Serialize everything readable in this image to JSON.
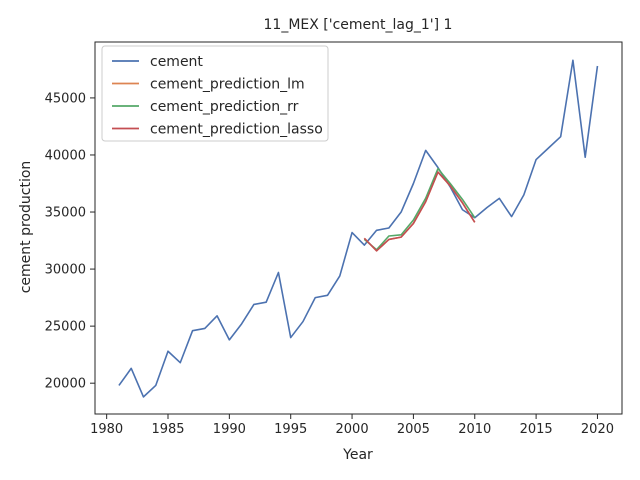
{
  "chart_data": {
    "type": "line",
    "title": "11_MEX ['cement_lag_1'] 1",
    "xlabel": "Year",
    "ylabel": "cement production",
    "xlim": [
      1979.05,
      2022.0
    ],
    "ylim": [
      17300,
      49900
    ],
    "xticks": [
      1980,
      1985,
      1990,
      1995,
      2000,
      2005,
      2010,
      2015,
      2020
    ],
    "yticks": [
      20000,
      25000,
      30000,
      35000,
      40000,
      45000
    ],
    "grid": false,
    "legend_position": "top-left",
    "series": [
      {
        "name": "cement",
        "color": "#4c72b0",
        "x": [
          1981,
          1982,
          1983,
          1984,
          1985,
          1986,
          1987,
          1988,
          1989,
          1990,
          1991,
          1992,
          1993,
          1994,
          1995,
          1996,
          1997,
          1998,
          1999,
          2000,
          2001,
          2002,
          2003,
          2004,
          2005,
          2006,
          2007,
          2008,
          2009,
          2010,
          2011,
          2012,
          2013,
          2014,
          2015,
          2016,
          2017,
          2018,
          2019,
          2020
        ],
        "y": [
          19800,
          21300,
          18800,
          19800,
          22800,
          21800,
          24600,
          24800,
          25900,
          23800,
          25200,
          26900,
          27100,
          29700,
          24000,
          25400,
          27500,
          27700,
          29400,
          33200,
          32100,
          33400,
          33600,
          35000,
          37500,
          40400,
          38900,
          37200,
          35200,
          34500,
          35400,
          36200,
          34600,
          36500,
          39600,
          40600,
          41600,
          48300,
          39800,
          47800
        ]
      },
      {
        "name": "cement_prediction_lm",
        "color": "#dd8452",
        "x": [
          2001,
          2002,
          2003,
          2004,
          2005,
          2006,
          2007,
          2008,
          2009,
          2010
        ],
        "y": [
          32700,
          31600,
          32600,
          32800,
          34000,
          35900,
          38500,
          37300,
          35800,
          34100
        ]
      },
      {
        "name": "cement_prediction_rr",
        "color": "#55a868",
        "x": [
          2001,
          2002,
          2003,
          2004,
          2005,
          2006,
          2007,
          2008,
          2009,
          2010
        ],
        "y": [
          32600,
          31700,
          32900,
          33000,
          34300,
          36200,
          38800,
          37500,
          36100,
          34500
        ]
      },
      {
        "name": "cement_prediction_lasso",
        "color": "#c44e52",
        "x": [
          2001,
          2002,
          2003,
          2004,
          2005,
          2006,
          2007,
          2008,
          2009,
          2010
        ],
        "y": [
          32700,
          31600,
          32600,
          32800,
          34000,
          35900,
          38500,
          37300,
          35800,
          34100
        ]
      }
    ]
  }
}
